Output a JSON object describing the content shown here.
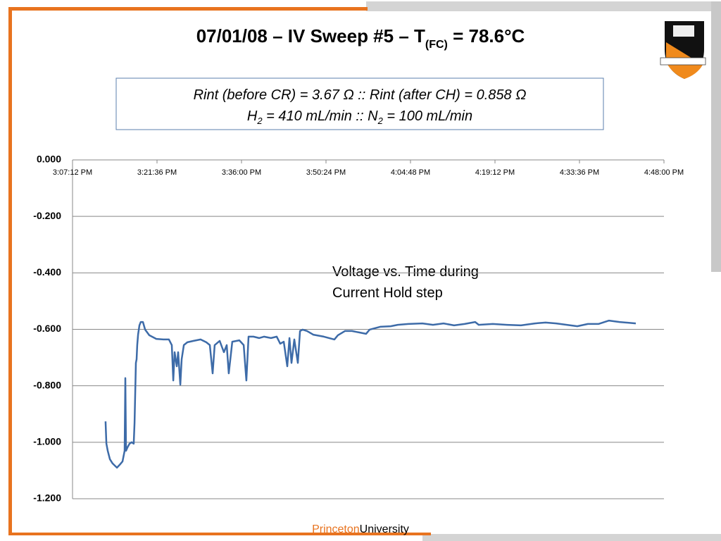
{
  "slide": {
    "title": {
      "text": "07/01/08 – IV Sweep #5 – T",
      "subscript": "(FC)",
      "suffix": " = 78.6°C"
    },
    "info_box": {
      "line1": "Rint (before CR) = 3.67 Ω :: Rint (after CH) = 0.858 Ω",
      "line2": {
        "h": "H",
        "h_sub": "2",
        "mid": " = 410 mL/min :: N",
        "n_sub": "2",
        "end": " = 100 mL/min"
      }
    },
    "footer": {
      "brand": "Princeton",
      "rest": "University"
    }
  },
  "chart_data": {
    "type": "line",
    "color": "#3d6ba8",
    "annotation": [
      "Voltage vs. Time during",
      "Current Hold step"
    ],
    "xlim": [
      54432,
      60480
    ],
    "xticks": [
      {
        "value": 54432,
        "label": "3:07:12 PM"
      },
      {
        "value": 55296,
        "label": "3:21:36 PM"
      },
      {
        "value": 56160,
        "label": "3:36:00 PM"
      },
      {
        "value": 57024,
        "label": "3:50:24 PM"
      },
      {
        "value": 57888,
        "label": "4:04:48 PM"
      },
      {
        "value": 58752,
        "label": "4:19:12 PM"
      },
      {
        "value": 59616,
        "label": "4:33:36 PM"
      },
      {
        "value": 60480,
        "label": "4:48:00 PM"
      }
    ],
    "ylim": [
      -1.2,
      0
    ],
    "yticks": [
      {
        "value": 0,
        "label": "0.000"
      },
      {
        "value": -0.2,
        "label": "-0.200"
      },
      {
        "value": -0.4,
        "label": "-0.400"
      },
      {
        "value": -0.6,
        "label": "-0.600"
      },
      {
        "value": -0.8,
        "label": "-0.800"
      },
      {
        "value": -1.0,
        "label": "-1.000"
      },
      {
        "value": -1.2,
        "label": "-1.200"
      }
    ],
    "grid": true,
    "x": [
      54770,
      54778,
      54792,
      54814,
      54842,
      54871,
      54886,
      54914,
      54943,
      54965,
      54972,
      54979,
      54994,
      55015,
      55037,
      55058,
      55066,
      55073,
      55080,
      55087,
      55094,
      55102,
      55116,
      55130,
      55152,
      55174,
      55217,
      55289,
      55361,
      55418,
      55447,
      55462,
      55476,
      55498,
      55512,
      55534,
      55548,
      55570,
      55606,
      55670,
      55742,
      55800,
      55836,
      55865,
      55886,
      55937,
      55980,
      56009,
      56030,
      56066,
      56138,
      56182,
      56210,
      56232,
      56282,
      56340,
      56390,
      56462,
      56520,
      56556,
      56592,
      56628,
      56650,
      56671,
      56700,
      56736,
      56758,
      56786,
      56830,
      56894,
      57002,
      57110,
      57146,
      57218,
      57290,
      57362,
      57434,
      57470,
      57578,
      57686,
      57758,
      57866,
      58010,
      58118,
      58226,
      58334,
      58442,
      58550,
      58586,
      58730,
      58874,
      59018,
      59162,
      59270,
      59378,
      59486,
      59594,
      59702,
      59810,
      59918,
      60026,
      60192
    ],
    "values": [
      -0.926,
      -1.005,
      -1.03,
      -1.06,
      -1.075,
      -1.085,
      -1.09,
      -1.08,
      -1.068,
      -1.03,
      -0.773,
      -1.03,
      -1.018,
      -1.005,
      -1.0,
      -1.005,
      -0.931,
      -0.831,
      -0.719,
      -0.706,
      -0.656,
      -0.619,
      -0.586,
      -0.574,
      -0.574,
      -0.601,
      -0.621,
      -0.634,
      -0.636,
      -0.636,
      -0.656,
      -0.781,
      -0.681,
      -0.731,
      -0.681,
      -0.796,
      -0.706,
      -0.656,
      -0.646,
      -0.641,
      -0.636,
      -0.646,
      -0.656,
      -0.756,
      -0.656,
      -0.641,
      -0.681,
      -0.656,
      -0.756,
      -0.644,
      -0.639,
      -0.656,
      -0.781,
      -0.626,
      -0.626,
      -0.631,
      -0.626,
      -0.631,
      -0.626,
      -0.651,
      -0.644,
      -0.731,
      -0.631,
      -0.719,
      -0.636,
      -0.719,
      -0.606,
      -0.601,
      -0.606,
      -0.619,
      -0.626,
      -0.636,
      -0.621,
      -0.606,
      -0.606,
      -0.611,
      -0.616,
      -0.601,
      -0.591,
      -0.589,
      -0.584,
      -0.581,
      -0.579,
      -0.584,
      -0.579,
      -0.586,
      -0.581,
      -0.574,
      -0.584,
      -0.581,
      -0.584,
      -0.586,
      -0.579,
      -0.576,
      -0.579,
      -0.584,
      -0.589,
      -0.581,
      -0.581,
      -0.569,
      -0.574,
      -0.579
    ]
  }
}
